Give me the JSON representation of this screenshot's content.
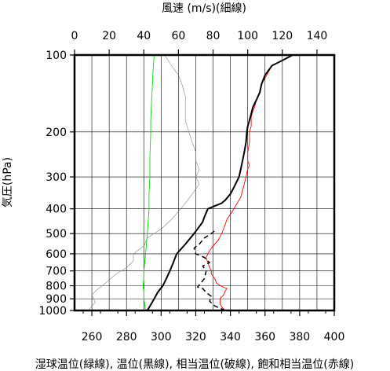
{
  "chart_data": {
    "type": "line",
    "title_top_axis": "風速 (m/s)(細線)",
    "xlabel_bottom": "湿球温位(緑線), 温位(黒線), 相当温位(破線), 飽和相当温位(赤線)",
    "ylabel": "気圧(hPa)",
    "y_scale": "log",
    "ylim": [
      1000,
      100
    ],
    "y_ticks": [
      100,
      200,
      300,
      400,
      500,
      600,
      700,
      800,
      900,
      1000
    ],
    "y_tick_labels": [
      "100",
      "200",
      "300",
      "400",
      "500",
      "600",
      "700",
      "800",
      "900",
      "1000"
    ],
    "x_bottom_range": [
      250,
      400
    ],
    "x_bottom_ticks": [
      260,
      280,
      300,
      320,
      340,
      360,
      380,
      400
    ],
    "x_bottom_tick_labels": [
      "260",
      "280",
      "300",
      "320",
      "340",
      "360",
      "380",
      "400"
    ],
    "x_top_range": [
      0,
      150
    ],
    "x_top_ticks": [
      0,
      20,
      40,
      60,
      80,
      100,
      120,
      140
    ],
    "x_top_tick_labels": [
      "0",
      "20",
      "40",
      "60",
      "80",
      "100",
      "120",
      "140"
    ],
    "grid": true,
    "series": [
      {
        "name": "湿球温位",
        "color": "#00e000",
        "style": "solid",
        "axis": "bottom",
        "points": [
          [
            291,
            1000
          ],
          [
            290.5,
            950
          ],
          [
            290,
            900
          ],
          [
            290,
            850
          ],
          [
            289.5,
            800
          ],
          [
            290,
            750
          ],
          [
            290,
            700
          ],
          [
            290.5,
            650
          ],
          [
            291,
            600
          ],
          [
            291.5,
            550
          ],
          [
            292,
            500
          ],
          [
            292.5,
            450
          ],
          [
            293,
            400
          ],
          [
            293,
            350
          ],
          [
            293.5,
            300
          ],
          [
            293.5,
            250
          ],
          [
            294,
            200
          ],
          [
            294,
            180
          ],
          [
            294.5,
            150
          ],
          [
            295,
            130
          ],
          [
            295.5,
            110
          ],
          [
            296,
            100
          ]
        ]
      },
      {
        "name": "温位",
        "color": "#000000",
        "style": "solid-thick",
        "axis": "bottom",
        "points": [
          [
            292,
            1000
          ],
          [
            294,
            950
          ],
          [
            296,
            900
          ],
          [
            298,
            850
          ],
          [
            301,
            800
          ],
          [
            303,
            750
          ],
          [
            305,
            700
          ],
          [
            307,
            650
          ],
          [
            309,
            600
          ],
          [
            311,
            580
          ],
          [
            314,
            550
          ],
          [
            317,
            520
          ],
          [
            319,
            500
          ],
          [
            322,
            470
          ],
          [
            324,
            450
          ],
          [
            325,
            430
          ],
          [
            327,
            400
          ],
          [
            331,
            390
          ],
          [
            335,
            380
          ],
          [
            337,
            370
          ],
          [
            340,
            350
          ],
          [
            342,
            330
          ],
          [
            344,
            310
          ],
          [
            345,
            300
          ],
          [
            346,
            280
          ],
          [
            347,
            260
          ],
          [
            348,
            240
          ],
          [
            349,
            220
          ],
          [
            349.5,
            200
          ],
          [
            350,
            190
          ],
          [
            351,
            180
          ],
          [
            352,
            170
          ],
          [
            353,
            160
          ],
          [
            355,
            150
          ],
          [
            357,
            140
          ],
          [
            358,
            130
          ],
          [
            360,
            120
          ],
          [
            364,
            110
          ],
          [
            370,
            105
          ],
          [
            376,
            100
          ]
        ]
      },
      {
        "name": "相当温位",
        "color": "#000000",
        "style": "dashed",
        "axis": "bottom",
        "points": [
          [
            337,
            1000
          ],
          [
            331,
            960
          ],
          [
            328,
            920
          ],
          [
            329,
            880
          ],
          [
            326,
            850
          ],
          [
            324,
            820
          ],
          [
            321,
            810
          ],
          [
            323,
            780
          ],
          [
            325,
            750
          ],
          [
            326,
            700
          ],
          [
            324,
            670
          ],
          [
            328,
            650
          ],
          [
            325,
            620
          ],
          [
            320,
            600
          ],
          [
            319,
            570
          ],
          [
            322,
            550
          ],
          [
            325,
            520
          ],
          [
            329,
            500
          ],
          [
            332,
            480
          ]
        ]
      },
      {
        "name": "飽和相当温位",
        "color": "#ff0000",
        "style": "solid",
        "axis": "bottom",
        "points": [
          [
            337,
            1000
          ],
          [
            335,
            970
          ],
          [
            334,
            940
          ],
          [
            334,
            900
          ],
          [
            336,
            870
          ],
          [
            337,
            840
          ],
          [
            338,
            820
          ],
          [
            334,
            800
          ],
          [
            332,
            780
          ],
          [
            331,
            750
          ],
          [
            329,
            720
          ],
          [
            329,
            700
          ],
          [
            328,
            680
          ],
          [
            327,
            650
          ],
          [
            326,
            620
          ],
          [
            327,
            600
          ],
          [
            329,
            570
          ],
          [
            331,
            550
          ],
          [
            333,
            530
          ],
          [
            335,
            500
          ],
          [
            336,
            480
          ],
          [
            337,
            460
          ],
          [
            338,
            440
          ],
          [
            340,
            420
          ],
          [
            342,
            400
          ],
          [
            344,
            380
          ],
          [
            346,
            360
          ],
          [
            347,
            340
          ],
          [
            348,
            320
          ],
          [
            349,
            300
          ],
          [
            350,
            280
          ],
          [
            351,
            270
          ],
          [
            350,
            260
          ],
          [
            350,
            240
          ],
          [
            351,
            220
          ],
          [
            351,
            200
          ],
          [
            352,
            190
          ],
          [
            352,
            175
          ],
          [
            353,
            165
          ],
          [
            354,
            160
          ],
          [
            355,
            150
          ],
          [
            357,
            140
          ],
          [
            358,
            130
          ],
          [
            361,
            120
          ],
          [
            364,
            110
          ],
          [
            370,
            105
          ],
          [
            376,
            100
          ]
        ]
      },
      {
        "name": "風速",
        "color": "#888888",
        "style": "solid-thin",
        "axis": "top",
        "points": [
          [
            8,
            1000
          ],
          [
            10,
            960
          ],
          [
            12,
            930
          ],
          [
            11,
            900
          ],
          [
            10,
            870
          ],
          [
            12,
            840
          ],
          [
            16,
            800
          ],
          [
            20,
            760
          ],
          [
            24,
            720
          ],
          [
            30,
            680
          ],
          [
            34,
            640
          ],
          [
            34,
            600
          ],
          [
            40,
            560
          ],
          [
            42,
            520
          ],
          [
            50,
            480
          ],
          [
            56,
            440
          ],
          [
            60,
            410
          ],
          [
            64,
            380
          ],
          [
            68,
            350
          ],
          [
            72,
            320
          ],
          [
            70,
            300
          ],
          [
            72,
            280
          ],
          [
            70,
            260
          ],
          [
            70,
            240
          ],
          [
            68,
            220
          ],
          [
            66,
            200
          ],
          [
            64,
            180
          ],
          [
            64,
            160
          ],
          [
            64,
            145
          ],
          [
            62,
            130
          ],
          [
            60,
            120
          ],
          [
            56,
            110
          ],
          [
            52,
            100
          ]
        ]
      }
    ]
  }
}
